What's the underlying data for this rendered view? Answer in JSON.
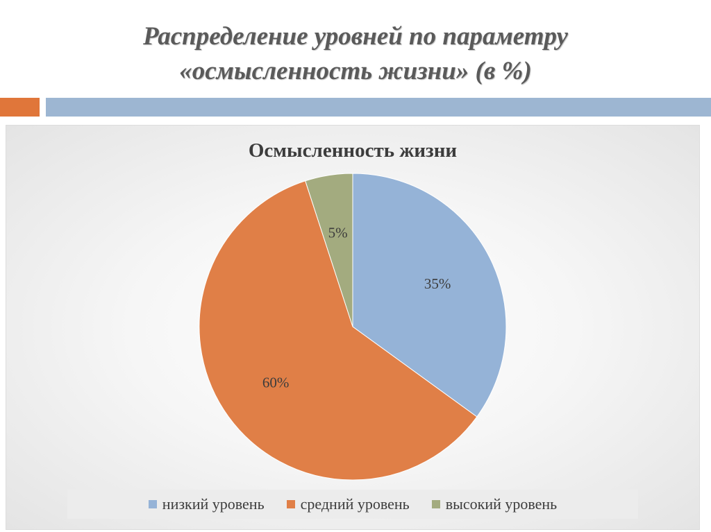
{
  "slide": {
    "title_line1": "Распределение уровней по параметру",
    "title_line2": "«осмысленность жизни» (в %)"
  },
  "colors": {
    "orange_bar": "#e0763a",
    "blue_bar": "#9db6d2"
  },
  "chart_data": {
    "type": "pie",
    "title": "Осмысленность жизни",
    "categories": [
      "низкий уровень",
      "средний уровень",
      "высокий уровень"
    ],
    "values": [
      35,
      60,
      5
    ],
    "labels": [
      "35%",
      "60%",
      "5%"
    ],
    "colors": [
      "#95b3d7",
      "#e07f47",
      "#a3ab7f"
    ],
    "start_angle_deg": 0,
    "direction": "clockwise",
    "legend_position": "bottom"
  }
}
